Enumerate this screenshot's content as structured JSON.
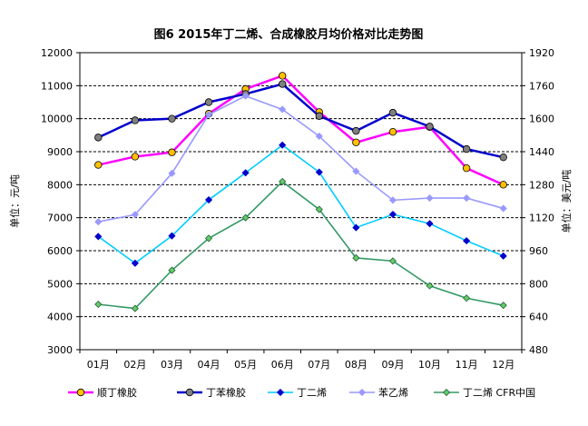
{
  "chart_data": {
    "type": "line",
    "title": "图6 2015年丁二烯、合成橡胶月均价格对比走势图",
    "ylabel": "单位：元/吨",
    "y2label": "单位：美元/吨",
    "categories": [
      "01月",
      "02月",
      "03月",
      "04月",
      "05月",
      "06月",
      "07月",
      "08月",
      "09月",
      "10月",
      "11月",
      "12月"
    ],
    "ylim": [
      3000,
      12000
    ],
    "yticks": [
      3000,
      4000,
      5000,
      6000,
      7000,
      8000,
      9000,
      10000,
      11000,
      12000
    ],
    "y2lim": [
      480,
      1920
    ],
    "y2ticks": [
      480,
      640,
      800,
      960,
      1120,
      1280,
      1440,
      1600,
      1760,
      1920
    ],
    "grid": "horizontal-dashed",
    "legend_position": "bottom",
    "series": [
      {
        "name": "顺丁橡胶",
        "axis": "left",
        "color": "#ff00ff",
        "marker": "circle",
        "marker_fill": "#ffc000",
        "values": [
          8600,
          8850,
          8980,
          10150,
          10900,
          11300,
          10200,
          9280,
          9600,
          9750,
          8500,
          8000
        ]
      },
      {
        "name": "丁苯橡胶",
        "axis": "left",
        "color": "#0000cc",
        "marker": "circle",
        "marker_fill": "#7f7f7f",
        "values": [
          9430,
          9950,
          10000,
          10500,
          10750,
          11050,
          10080,
          9630,
          10180,
          9760,
          9080,
          8830
        ]
      },
      {
        "name": "丁二烯",
        "axis": "left",
        "color": "#00ccff",
        "marker": "diamond",
        "marker_fill": "#0000cc",
        "values": [
          6430,
          5620,
          6450,
          7540,
          8360,
          9200,
          8380,
          6700,
          7100,
          6820,
          6300,
          5840
        ]
      },
      {
        "name": "苯乙烯",
        "axis": "right",
        "color": "#9999ff",
        "marker": "diamond",
        "marker_fill": "#9999ff",
        "values": [
          1100,
          1135,
          1335,
          1620,
          1710,
          1645,
          1515,
          1345,
          1205,
          1215,
          1215,
          1165
        ]
      },
      {
        "name": "丁二烯 CFR中国",
        "axis": "right",
        "color": "#339966",
        "marker": "diamond",
        "marker_fill": "#66cc66",
        "values": [
          700,
          680,
          865,
          1020,
          1120,
          1295,
          1160,
          925,
          910,
          790,
          730,
          695
        ]
      }
    ]
  }
}
